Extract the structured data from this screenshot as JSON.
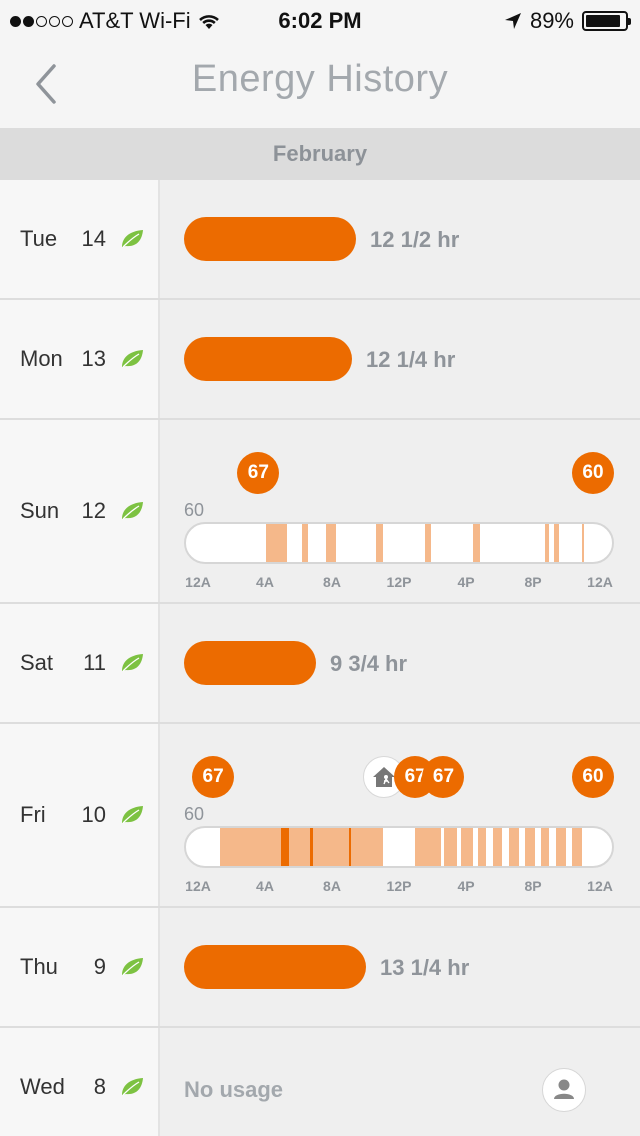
{
  "status_bar": {
    "carrier": "AT&T Wi-Fi",
    "time": "6:02 PM",
    "battery": "89%",
    "battery_level": 0.89
  },
  "nav": {
    "title": "Energy History",
    "back_icon": "chevron-left-icon"
  },
  "month": "February",
  "days": [
    {
      "name": "Tue",
      "num": "14",
      "leaf": true,
      "type": "bar",
      "usage": "12 1/2  hr",
      "fraction": 0.52
    },
    {
      "name": "Mon",
      "num": "13",
      "leaf": true,
      "type": "bar",
      "usage": "12 1/4  hr",
      "fraction": 0.51
    },
    {
      "name": "Sun",
      "num": "12",
      "leaf": true,
      "type": "timeline",
      "setpoint": "60",
      "badges": [
        {
          "label": "67",
          "hour": 3.3
        },
        {
          "label": "60",
          "hour": 24
        }
      ],
      "ticks": [
        "12A",
        "4A",
        "8A",
        "12P",
        "4P",
        "8P",
        "12A"
      ],
      "segments": [
        {
          "start": 3.8,
          "end": 5.1,
          "tone": "light"
        },
        {
          "start": 6.0,
          "end": 6.4,
          "tone": "light"
        },
        {
          "start": 7.5,
          "end": 8.1,
          "tone": "light"
        },
        {
          "start": 10.6,
          "end": 11.0,
          "tone": "light"
        },
        {
          "start": 13.6,
          "end": 14.0,
          "tone": "light"
        },
        {
          "start": 16.6,
          "end": 17.0,
          "tone": "light"
        },
        {
          "start": 21.0,
          "end": 21.3,
          "tone": "light"
        },
        {
          "start": 21.6,
          "end": 21.9,
          "tone": "light"
        },
        {
          "start": 23.3,
          "end": 23.45,
          "tone": "light"
        }
      ]
    },
    {
      "name": "Sat",
      "num": "11",
      "leaf": true,
      "type": "bar",
      "usage": "9 3/4  hr",
      "fraction": 0.4
    },
    {
      "name": "Fri",
      "num": "10",
      "leaf": true,
      "type": "timeline",
      "setpoint": "60",
      "badges": [
        {
          "label": "67",
          "hour": 0.5
        },
        {
          "label": "",
          "hour": 11.1,
          "away": true
        },
        {
          "label": "67",
          "hour": 13.0
        },
        {
          "label": "67",
          "hour": 14.75
        },
        {
          "label": "60",
          "hour": 24
        }
      ],
      "ticks": [
        "12A",
        "4A",
        "8A",
        "12P",
        "4P",
        "8P",
        "12A"
      ],
      "segments": [
        {
          "start": 0.9,
          "end": 11.0,
          "tone": "light"
        },
        {
          "start": 4.7,
          "end": 5.2,
          "tone": "dark"
        },
        {
          "start": 6.5,
          "end": 6.65,
          "tone": "dark"
        },
        {
          "start": 8.9,
          "end": 9.05,
          "tone": "dark"
        },
        {
          "start": 13.0,
          "end": 14.6,
          "tone": "light"
        },
        {
          "start": 14.8,
          "end": 15.6,
          "tone": "light"
        },
        {
          "start": 15.85,
          "end": 16.6,
          "tone": "light"
        },
        {
          "start": 16.9,
          "end": 17.4,
          "tone": "light"
        },
        {
          "start": 17.8,
          "end": 18.4,
          "tone": "light"
        },
        {
          "start": 18.8,
          "end": 19.4,
          "tone": "light"
        },
        {
          "start": 19.8,
          "end": 20.4,
          "tone": "light"
        },
        {
          "start": 20.8,
          "end": 21.3,
          "tone": "light"
        },
        {
          "start": 21.7,
          "end": 22.3,
          "tone": "light"
        },
        {
          "start": 22.7,
          "end": 23.3,
          "tone": "light"
        }
      ]
    },
    {
      "name": "Thu",
      "num": "9",
      "leaf": true,
      "type": "bar",
      "usage": "13 1/4  hr",
      "fraction": 0.55
    },
    {
      "name": "Wed",
      "num": "8",
      "leaf": true,
      "type": "none",
      "usage": "No usage"
    }
  ],
  "colors": {
    "accent": "#ec6b00",
    "accent_light": "#f5b88a",
    "leaf": "#7dc242"
  }
}
